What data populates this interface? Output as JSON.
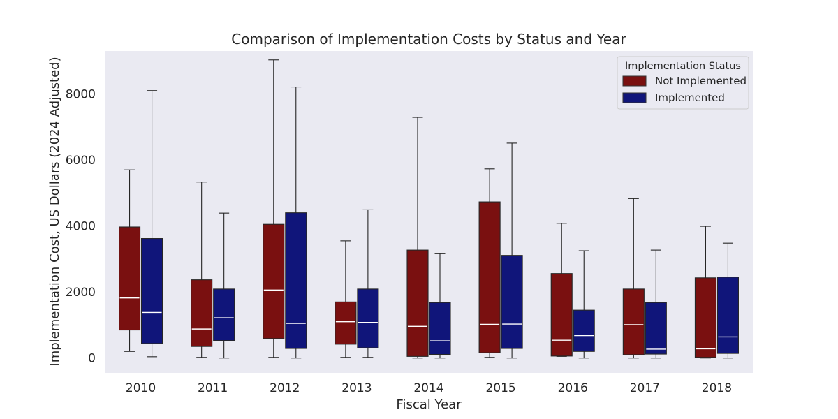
{
  "chart_data": {
    "type": "boxplot",
    "title": "Comparison of Implementation Costs by Status and Year",
    "xlabel": "Fiscal Year",
    "ylabel": "Implementation Cost, US Dollars (2024 Adjusted)",
    "categories": [
      "2010",
      "2011",
      "2012",
      "2013",
      "2014",
      "2015",
      "2016",
      "2017",
      "2018"
    ],
    "ylim": [
      -450,
      9300
    ],
    "yticks": [
      0,
      2000,
      4000,
      6000,
      8000
    ],
    "grid": false,
    "legend": {
      "title": "Implementation Status",
      "position": "top-right"
    },
    "series": [
      {
        "name": "Not Implemented",
        "color": "#7a1010",
        "boxes": [
          {
            "min": 200,
            "q1": 850,
            "median": 1820,
            "q3": 3970,
            "max": 5700
          },
          {
            "min": 20,
            "q1": 350,
            "median": 880,
            "q3": 2370,
            "max": 5330
          },
          {
            "min": 20,
            "q1": 590,
            "median": 2060,
            "q3": 4050,
            "max": 9030
          },
          {
            "min": 20,
            "q1": 420,
            "median": 1100,
            "q3": 1700,
            "max": 3550
          },
          {
            "min": 0,
            "q1": 50,
            "median": 960,
            "q3": 3270,
            "max": 7290
          },
          {
            "min": 20,
            "q1": 160,
            "median": 1020,
            "q3": 4730,
            "max": 5730
          },
          {
            "min": 50,
            "q1": 60,
            "median": 540,
            "q3": 2560,
            "max": 4080
          },
          {
            "min": 0,
            "q1": 100,
            "median": 1010,
            "q3": 2090,
            "max": 4830
          },
          {
            "min": 0,
            "q1": 20,
            "median": 280,
            "q3": 2430,
            "max": 3990
          }
        ]
      },
      {
        "name": "Implemented",
        "color": "#10157a",
        "boxes": [
          {
            "min": 40,
            "q1": 440,
            "median": 1380,
            "q3": 3620,
            "max": 8100
          },
          {
            "min": 0,
            "q1": 530,
            "median": 1220,
            "q3": 2090,
            "max": 4390
          },
          {
            "min": 0,
            "q1": 290,
            "median": 1050,
            "q3": 4400,
            "max": 8210
          },
          {
            "min": 20,
            "q1": 310,
            "median": 1080,
            "q3": 2090,
            "max": 4490
          },
          {
            "min": 0,
            "q1": 110,
            "median": 520,
            "q3": 1680,
            "max": 3160
          },
          {
            "min": 0,
            "q1": 290,
            "median": 1030,
            "q3": 3110,
            "max": 6510
          },
          {
            "min": 0,
            "q1": 200,
            "median": 680,
            "q3": 1450,
            "max": 3250
          },
          {
            "min": 0,
            "q1": 120,
            "median": 270,
            "q3": 1680,
            "max": 3270
          },
          {
            "min": 0,
            "q1": 140,
            "median": 640,
            "q3": 2450,
            "max": 3480
          }
        ]
      }
    ]
  }
}
